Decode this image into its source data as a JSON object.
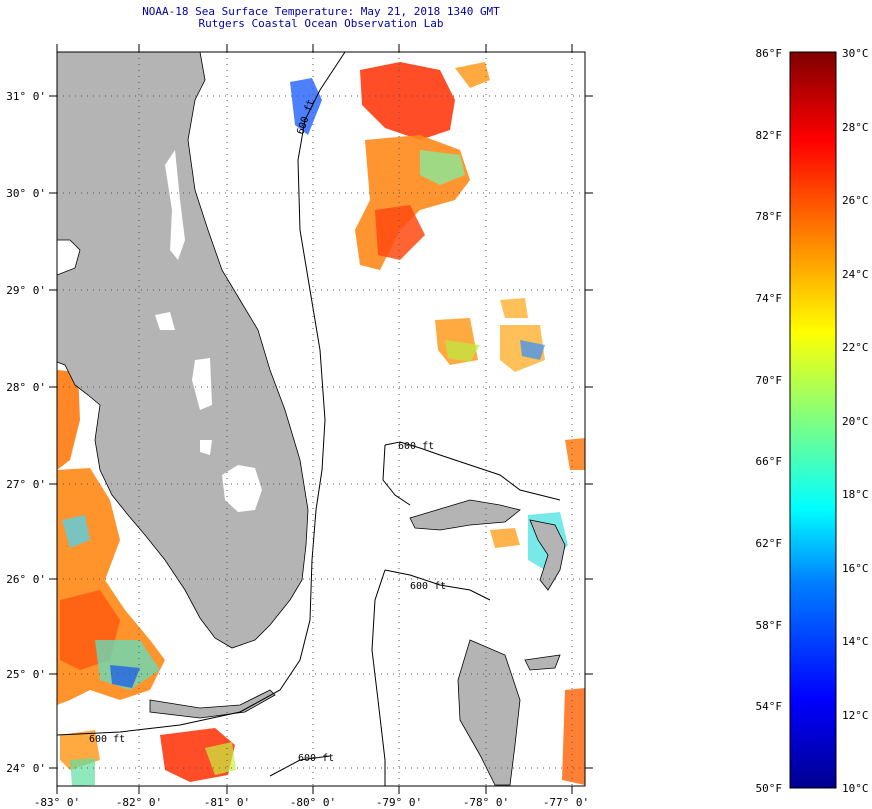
{
  "header": {
    "title": "NOAA-18 Sea Surface Temperature:  May 21, 2018 1340 GMT",
    "subtitle": "Rutgers Coastal Ocean Observation Lab"
  },
  "map": {
    "latitude_labels": [
      "31° 0'",
      "30° 0'",
      "29° 0'",
      "28° 0'",
      "27° 0'",
      "26° 0'",
      "25° 0'",
      "24° 0'"
    ],
    "longitude_labels": [
      "-83° 0'",
      "-82° 0'",
      "-81° 0'",
      "-80° 0'",
      "-79° 0'",
      "-78° 0'",
      "-77° 0'"
    ],
    "contour_labels": [
      "600 ft",
      "600 ft",
      "600 ft",
      "600 ft",
      "600 ft"
    ],
    "colors": {
      "land": "#b4b4b4",
      "ocean": "#ffffff",
      "grid": "#555555"
    }
  },
  "colorbar": {
    "fahrenheit_labels": [
      "86°F",
      "82°F",
      "78°F",
      "74°F",
      "70°F",
      "66°F",
      "62°F",
      "58°F",
      "54°F",
      "50°F"
    ],
    "celsius_labels": [
      "30°C",
      "28°C",
      "26°C",
      "24°C",
      "22°C",
      "20°C",
      "18°C",
      "16°C",
      "14°C",
      "12°C",
      "10°C"
    ],
    "range_f": [
      50,
      86
    ],
    "range_c": [
      10,
      30
    ],
    "colormap": [
      "#00008f",
      "#0000ff",
      "#0080ff",
      "#00ffff",
      "#80ff80",
      "#ffff00",
      "#ff8000",
      "#ff0000",
      "#800000"
    ]
  }
}
